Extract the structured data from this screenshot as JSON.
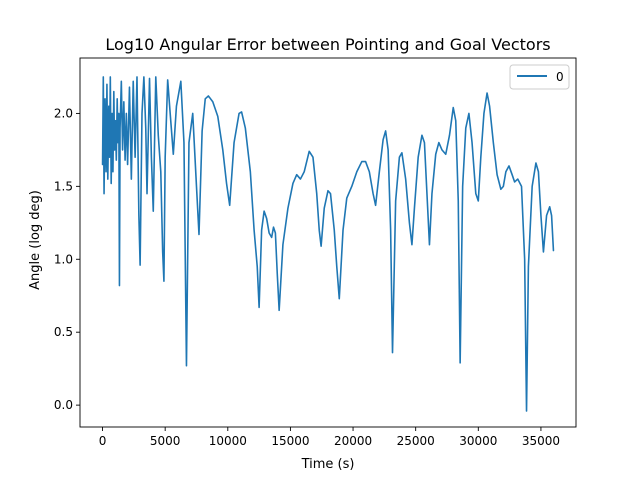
{
  "chart_data": {
    "type": "line",
    "title": "Log10 Angular Error between Pointing and Goal Vectors",
    "xlabel": "Time (s)",
    "ylabel": "Angle (log deg)",
    "xlim": [
      -1800,
      37800
    ],
    "ylim": [
      -0.15,
      2.38
    ],
    "xticks": [
      0,
      5000,
      10000,
      15000,
      20000,
      25000,
      30000,
      35000
    ],
    "xtick_labels": [
      "0",
      "5000",
      "10000",
      "15000",
      "20000",
      "25000",
      "30000",
      "35000"
    ],
    "yticks": [
      0.0,
      0.5,
      1.0,
      1.5,
      2.0
    ],
    "ytick_labels": [
      "0.0",
      "0.5",
      "1.0",
      "1.5",
      "2.0"
    ],
    "grid": false,
    "legend_position": "top-right",
    "series": [
      {
        "name": "0",
        "color": "#1f77b4",
        "points": [
          [
            0,
            1.65
          ],
          [
            60,
            2.25
          ],
          [
            120,
            1.45
          ],
          [
            200,
            2.1
          ],
          [
            280,
            1.6
          ],
          [
            350,
            2.2
          ],
          [
            420,
            1.55
          ],
          [
            500,
            2.05
          ],
          [
            560,
            1.7
          ],
          [
            620,
            2.25
          ],
          [
            690,
            1.52
          ],
          [
            760,
            2.0
          ],
          [
            830,
            1.6
          ],
          [
            900,
            2.15
          ],
          [
            960,
            1.75
          ],
          [
            1030,
            1.95
          ],
          [
            1100,
            1.68
          ],
          [
            1170,
            2.1
          ],
          [
            1230,
            1.8
          ],
          [
            1300,
            2.0
          ],
          [
            1350,
            0.82
          ],
          [
            1400,
            1.9
          ],
          [
            1500,
            2.22
          ],
          [
            1600,
            1.75
          ],
          [
            1700,
            2.08
          ],
          [
            1800,
            1.68
          ],
          [
            1900,
            2.0
          ],
          [
            2000,
            1.65
          ],
          [
            2150,
            2.18
          ],
          [
            2300,
            1.55
          ],
          [
            2450,
            2.22
          ],
          [
            2600,
            1.7
          ],
          [
            2750,
            2.25
          ],
          [
            2900,
            1.3
          ],
          [
            3000,
            0.96
          ],
          [
            3150,
            2.0
          ],
          [
            3300,
            2.25
          ],
          [
            3450,
            1.9
          ],
          [
            3550,
            1.45
          ],
          [
            3750,
            2.24
          ],
          [
            3900,
            1.7
          ],
          [
            4050,
            1.33
          ],
          [
            4250,
            2.25
          ],
          [
            4450,
            1.85
          ],
          [
            4650,
            1.6
          ],
          [
            4800,
            1.05
          ],
          [
            4900,
            0.85
          ],
          [
            5000,
            1.7
          ],
          [
            5200,
            2.23
          ],
          [
            5400,
            2.0
          ],
          [
            5650,
            1.72
          ],
          [
            5900,
            2.05
          ],
          [
            6250,
            2.22
          ],
          [
            6500,
            1.8
          ],
          [
            6700,
            0.27
          ],
          [
            6900,
            1.8
          ],
          [
            7200,
            2.0
          ],
          [
            7500,
            1.5
          ],
          [
            7700,
            1.17
          ],
          [
            7950,
            1.88
          ],
          [
            8200,
            2.1
          ],
          [
            8450,
            2.12
          ],
          [
            8800,
            2.08
          ],
          [
            9200,
            1.98
          ],
          [
            9600,
            1.75
          ],
          [
            9900,
            1.52
          ],
          [
            10150,
            1.37
          ],
          [
            10500,
            1.8
          ],
          [
            10900,
            2.0
          ],
          [
            11100,
            2.01
          ],
          [
            11400,
            1.9
          ],
          [
            11800,
            1.6
          ],
          [
            12100,
            1.2
          ],
          [
            12350,
            0.95
          ],
          [
            12500,
            0.67
          ],
          [
            12700,
            1.2
          ],
          [
            12900,
            1.33
          ],
          [
            13100,
            1.28
          ],
          [
            13300,
            1.18
          ],
          [
            13500,
            1.15
          ],
          [
            13650,
            1.22
          ],
          [
            13800,
            1.18
          ],
          [
            13950,
            0.9
          ],
          [
            14100,
            0.65
          ],
          [
            14400,
            1.1
          ],
          [
            14800,
            1.35
          ],
          [
            15200,
            1.52
          ],
          [
            15500,
            1.58
          ],
          [
            15800,
            1.55
          ],
          [
            16100,
            1.6
          ],
          [
            16500,
            1.74
          ],
          [
            16800,
            1.7
          ],
          [
            17100,
            1.45
          ],
          [
            17300,
            1.2
          ],
          [
            17450,
            1.09
          ],
          [
            17700,
            1.35
          ],
          [
            18000,
            1.47
          ],
          [
            18200,
            1.45
          ],
          [
            18500,
            1.2
          ],
          [
            18700,
            0.95
          ],
          [
            18900,
            0.73
          ],
          [
            19200,
            1.2
          ],
          [
            19500,
            1.42
          ],
          [
            19900,
            1.5
          ],
          [
            20300,
            1.6
          ],
          [
            20700,
            1.67
          ],
          [
            21000,
            1.67
          ],
          [
            21300,
            1.6
          ],
          [
            21600,
            1.45
          ],
          [
            21800,
            1.37
          ],
          [
            22100,
            1.6
          ],
          [
            22400,
            1.82
          ],
          [
            22600,
            1.88
          ],
          [
            22800,
            1.75
          ],
          [
            23000,
            1.2
          ],
          [
            23150,
            0.36
          ],
          [
            23400,
            1.4
          ],
          [
            23700,
            1.7
          ],
          [
            23900,
            1.73
          ],
          [
            24200,
            1.55
          ],
          [
            24500,
            1.25
          ],
          [
            24700,
            1.1
          ],
          [
            24900,
            1.35
          ],
          [
            25200,
            1.7
          ],
          [
            25500,
            1.85
          ],
          [
            25700,
            1.8
          ],
          [
            25900,
            1.45
          ],
          [
            26100,
            1.1
          ],
          [
            26300,
            1.45
          ],
          [
            26600,
            1.72
          ],
          [
            26850,
            1.8
          ],
          [
            27100,
            1.75
          ],
          [
            27400,
            1.72
          ],
          [
            27700,
            1.85
          ],
          [
            28000,
            2.04
          ],
          [
            28200,
            1.95
          ],
          [
            28400,
            1.4
          ],
          [
            28550,
            0.29
          ],
          [
            28750,
            1.5
          ],
          [
            29000,
            1.9
          ],
          [
            29250,
            2.0
          ],
          [
            29500,
            1.8
          ],
          [
            29800,
            1.45
          ],
          [
            30000,
            1.4
          ],
          [
            30200,
            1.7
          ],
          [
            30450,
            2.0
          ],
          [
            30700,
            2.14
          ],
          [
            30900,
            2.05
          ],
          [
            31200,
            1.8
          ],
          [
            31500,
            1.58
          ],
          [
            31800,
            1.48
          ],
          [
            32000,
            1.5
          ],
          [
            32200,
            1.6
          ],
          [
            32450,
            1.64
          ],
          [
            32700,
            1.58
          ],
          [
            32900,
            1.53
          ],
          [
            33150,
            1.55
          ],
          [
            33450,
            1.5
          ],
          [
            33700,
            1.0
          ],
          [
            33850,
            -0.04
          ],
          [
            34000,
            0.95
          ],
          [
            34300,
            1.5
          ],
          [
            34600,
            1.66
          ],
          [
            34800,
            1.6
          ],
          [
            35000,
            1.3
          ],
          [
            35200,
            1.05
          ],
          [
            35450,
            1.3
          ],
          [
            35700,
            1.36
          ],
          [
            35850,
            1.3
          ],
          [
            36000,
            1.06
          ]
        ]
      }
    ]
  }
}
